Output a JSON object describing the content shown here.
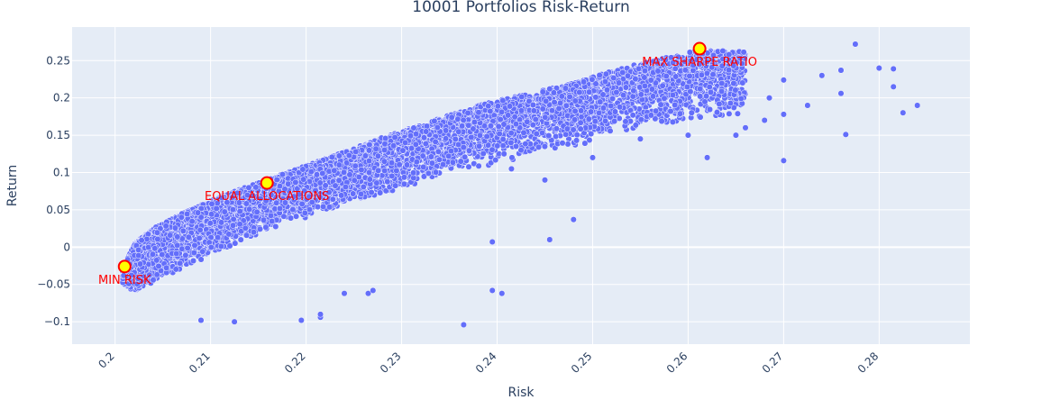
{
  "chart_data": {
    "type": "scatter",
    "title": "10001 Portfolios Risk-Return",
    "xlabel": "Risk",
    "ylabel": "Return",
    "xlim": [
      0.1955,
      0.2895
    ],
    "ylim": [
      -0.13,
      0.295
    ],
    "x_ticks": [
      0.2,
      0.21,
      0.22,
      0.23,
      0.24,
      0.25,
      0.26,
      0.27,
      0.28
    ],
    "x_tick_labels": [
      "0.2",
      "0.21",
      "0.22",
      "0.23",
      "0.24",
      "0.25",
      "0.26",
      "0.27",
      "0.28"
    ],
    "y_ticks": [
      -0.1,
      -0.05,
      0,
      0.05,
      0.1,
      0.15,
      0.2,
      0.25
    ],
    "y_tick_labels": [
      "−0.1",
      "−0.05",
      "0",
      "0.05",
      "0.1",
      "0.15",
      "0.2",
      "0.25"
    ],
    "grid": true,
    "colors": {
      "plot_bg": "#e5ecf6",
      "grid": "#ffffff",
      "point": "#636efa",
      "highlight_fill": "#ffff00",
      "highlight_stroke": "#ff0000",
      "annotation": "#ff0000",
      "text": "#2a3f5f"
    },
    "series": [
      {
        "n_points": 10001,
        "envelope": {
          "frontier_x": [
            0.2008,
            0.202,
            0.204,
            0.207,
            0.21,
            0.214,
            0.218,
            0.223,
            0.228,
            0.233,
            0.238,
            0.243,
            0.248,
            0.253,
            0.257,
            0.261,
            0.266
          ],
          "frontier_upper": [
            -0.03,
            0.005,
            0.025,
            0.045,
            0.062,
            0.082,
            0.1,
            0.123,
            0.147,
            0.168,
            0.19,
            0.205,
            0.22,
            0.24,
            0.252,
            0.264,
            0.262
          ],
          "frontier_lower": [
            -0.05,
            -0.06,
            -0.05,
            -0.03,
            -0.01,
            0.01,
            0.03,
            0.05,
            0.07,
            0.09,
            0.105,
            0.12,
            0.135,
            0.15,
            0.16,
            0.17,
            0.175
          ]
        },
        "outliers": [
          {
            "x": 0.2775,
            "y": 0.272
          },
          {
            "x": 0.28,
            "y": 0.24
          },
          {
            "x": 0.2815,
            "y": 0.239
          },
          {
            "x": 0.2815,
            "y": 0.215
          },
          {
            "x": 0.2825,
            "y": 0.18
          },
          {
            "x": 0.284,
            "y": 0.19
          },
          {
            "x": 0.276,
            "y": 0.237
          },
          {
            "x": 0.274,
            "y": 0.23
          },
          {
            "x": 0.276,
            "y": 0.206
          },
          {
            "x": 0.2765,
            "y": 0.151
          },
          {
            "x": 0.27,
            "y": 0.116
          },
          {
            "x": 0.27,
            "y": 0.224
          },
          {
            "x": 0.2685,
            "y": 0.2
          },
          {
            "x": 0.2725,
            "y": 0.19
          },
          {
            "x": 0.27,
            "y": 0.178
          },
          {
            "x": 0.2365,
            "y": -0.104
          },
          {
            "x": 0.2395,
            "y": 0.007
          },
          {
            "x": 0.2395,
            "y": -0.058
          },
          {
            "x": 0.2405,
            "y": -0.062
          },
          {
            "x": 0.2455,
            "y": 0.01
          },
          {
            "x": 0.248,
            "y": 0.037
          },
          {
            "x": 0.2215,
            "y": -0.094
          },
          {
            "x": 0.2195,
            "y": -0.098
          },
          {
            "x": 0.2125,
            "y": -0.1
          },
          {
            "x": 0.209,
            "y": -0.098
          },
          {
            "x": 0.2265,
            "y": -0.062
          },
          {
            "x": 0.224,
            "y": -0.062
          },
          {
            "x": 0.2215,
            "y": -0.09
          },
          {
            "x": 0.227,
            "y": -0.058
          },
          {
            "x": 0.2425,
            "y": 0.13
          },
          {
            "x": 0.2415,
            "y": 0.105
          },
          {
            "x": 0.245,
            "y": 0.09
          },
          {
            "x": 0.25,
            "y": 0.12
          },
          {
            "x": 0.255,
            "y": 0.145
          },
          {
            "x": 0.26,
            "y": 0.15
          },
          {
            "x": 0.262,
            "y": 0.12
          },
          {
            "x": 0.265,
            "y": 0.15
          },
          {
            "x": 0.266,
            "y": 0.16
          },
          {
            "x": 0.268,
            "y": 0.17
          }
        ]
      }
    ],
    "highlights": [
      {
        "label": "MIN RISK",
        "x": 0.201,
        "y": -0.026
      },
      {
        "label": "EQUAL ALLOCATIONS",
        "x": 0.2159,
        "y": 0.086
      },
      {
        "label": "MAX SHARPE RATIO",
        "x": 0.2612,
        "y": 0.266
      }
    ]
  }
}
